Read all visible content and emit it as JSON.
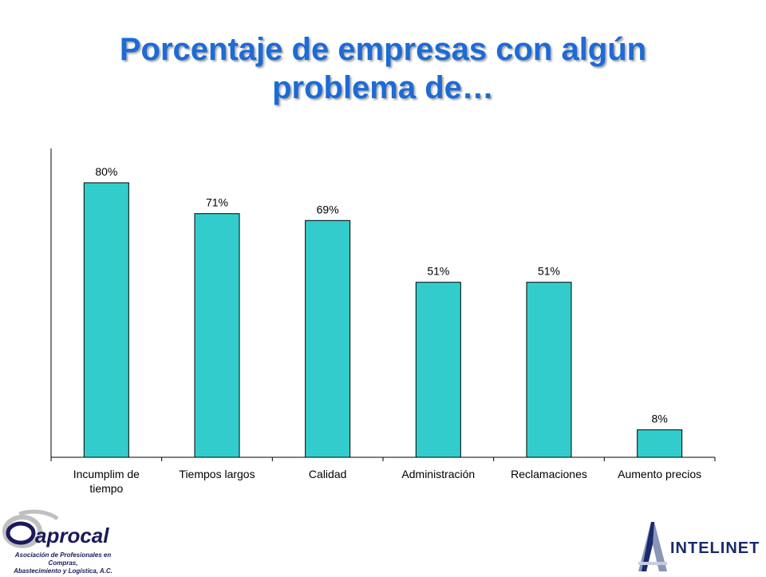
{
  "slide": {
    "title_line1": "Porcentaje de empresas con algún",
    "title_line2": "problema de…"
  },
  "chart_data": {
    "type": "bar",
    "title": "",
    "xlabel": "",
    "ylabel": "",
    "ylim": [
      0,
      90
    ],
    "grid": false,
    "legend": "none",
    "bar_color": "#33cccc",
    "bar_stroke": "#000000",
    "categories": [
      [
        "Incumplim de",
        "tiempo"
      ],
      [
        "Tiempos largos"
      ],
      [
        "Calidad"
      ],
      [
        "Administración"
      ],
      [
        "Reclamaciones"
      ],
      [
        "Aumento precios"
      ]
    ],
    "values": [
      80,
      71,
      69,
      51,
      51,
      8
    ],
    "value_labels": [
      "80%",
      "71%",
      "69%",
      "51%",
      "51%",
      "8%"
    ]
  },
  "logos": {
    "left": {
      "name": "aprocal",
      "caption_line1": "Asociación de Profesionales en Compras,",
      "caption_line2": "Abastecimiento y Logística, A.C."
    },
    "right": {
      "name": "INTELINET"
    }
  },
  "colors": {
    "title": "#1c6bd6",
    "bars": "#33cccc",
    "logo_left": "#1a1a5c",
    "logo_right": "#1a2a6c"
  }
}
